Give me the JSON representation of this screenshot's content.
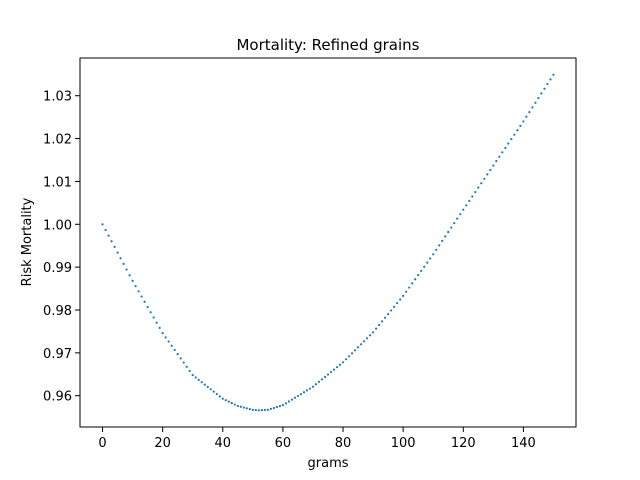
{
  "chart_data": {
    "type": "scatter",
    "title": "Mortality: Refined grains",
    "xlabel": "grams",
    "ylabel": "Risk Mortality",
    "xlim": [
      -7.5,
      157.5
    ],
    "ylim": [
      0.9527,
      1.0388
    ],
    "xticks": [
      0,
      20,
      40,
      60,
      80,
      100,
      120,
      140
    ],
    "yticks": [
      0.96,
      0.97,
      0.98,
      0.99,
      1.0,
      1.01,
      1.02,
      1.03
    ],
    "ytick_labels": [
      "0.96",
      "0.97",
      "0.98",
      "0.99",
      "1.00",
      "1.01",
      "1.02",
      "1.03"
    ],
    "grid": false,
    "marker_color": "#1f77b4",
    "series": [
      {
        "x_start": 0,
        "x_end": 150,
        "x_step": 1,
        "x": [
          0,
          10,
          20,
          30,
          40,
          45,
          50,
          52,
          55,
          60,
          70,
          80,
          90,
          100,
          110,
          120,
          130,
          140,
          150
        ],
        "y": [
          1.0,
          0.9868,
          0.9746,
          0.9648,
          0.9593,
          0.9576,
          0.9567,
          0.9566,
          0.9567,
          0.9578,
          0.9621,
          0.9678,
          0.9748,
          0.9833,
          0.993,
          1.0034,
          1.0137,
          1.024,
          1.0349
        ]
      }
    ]
  }
}
